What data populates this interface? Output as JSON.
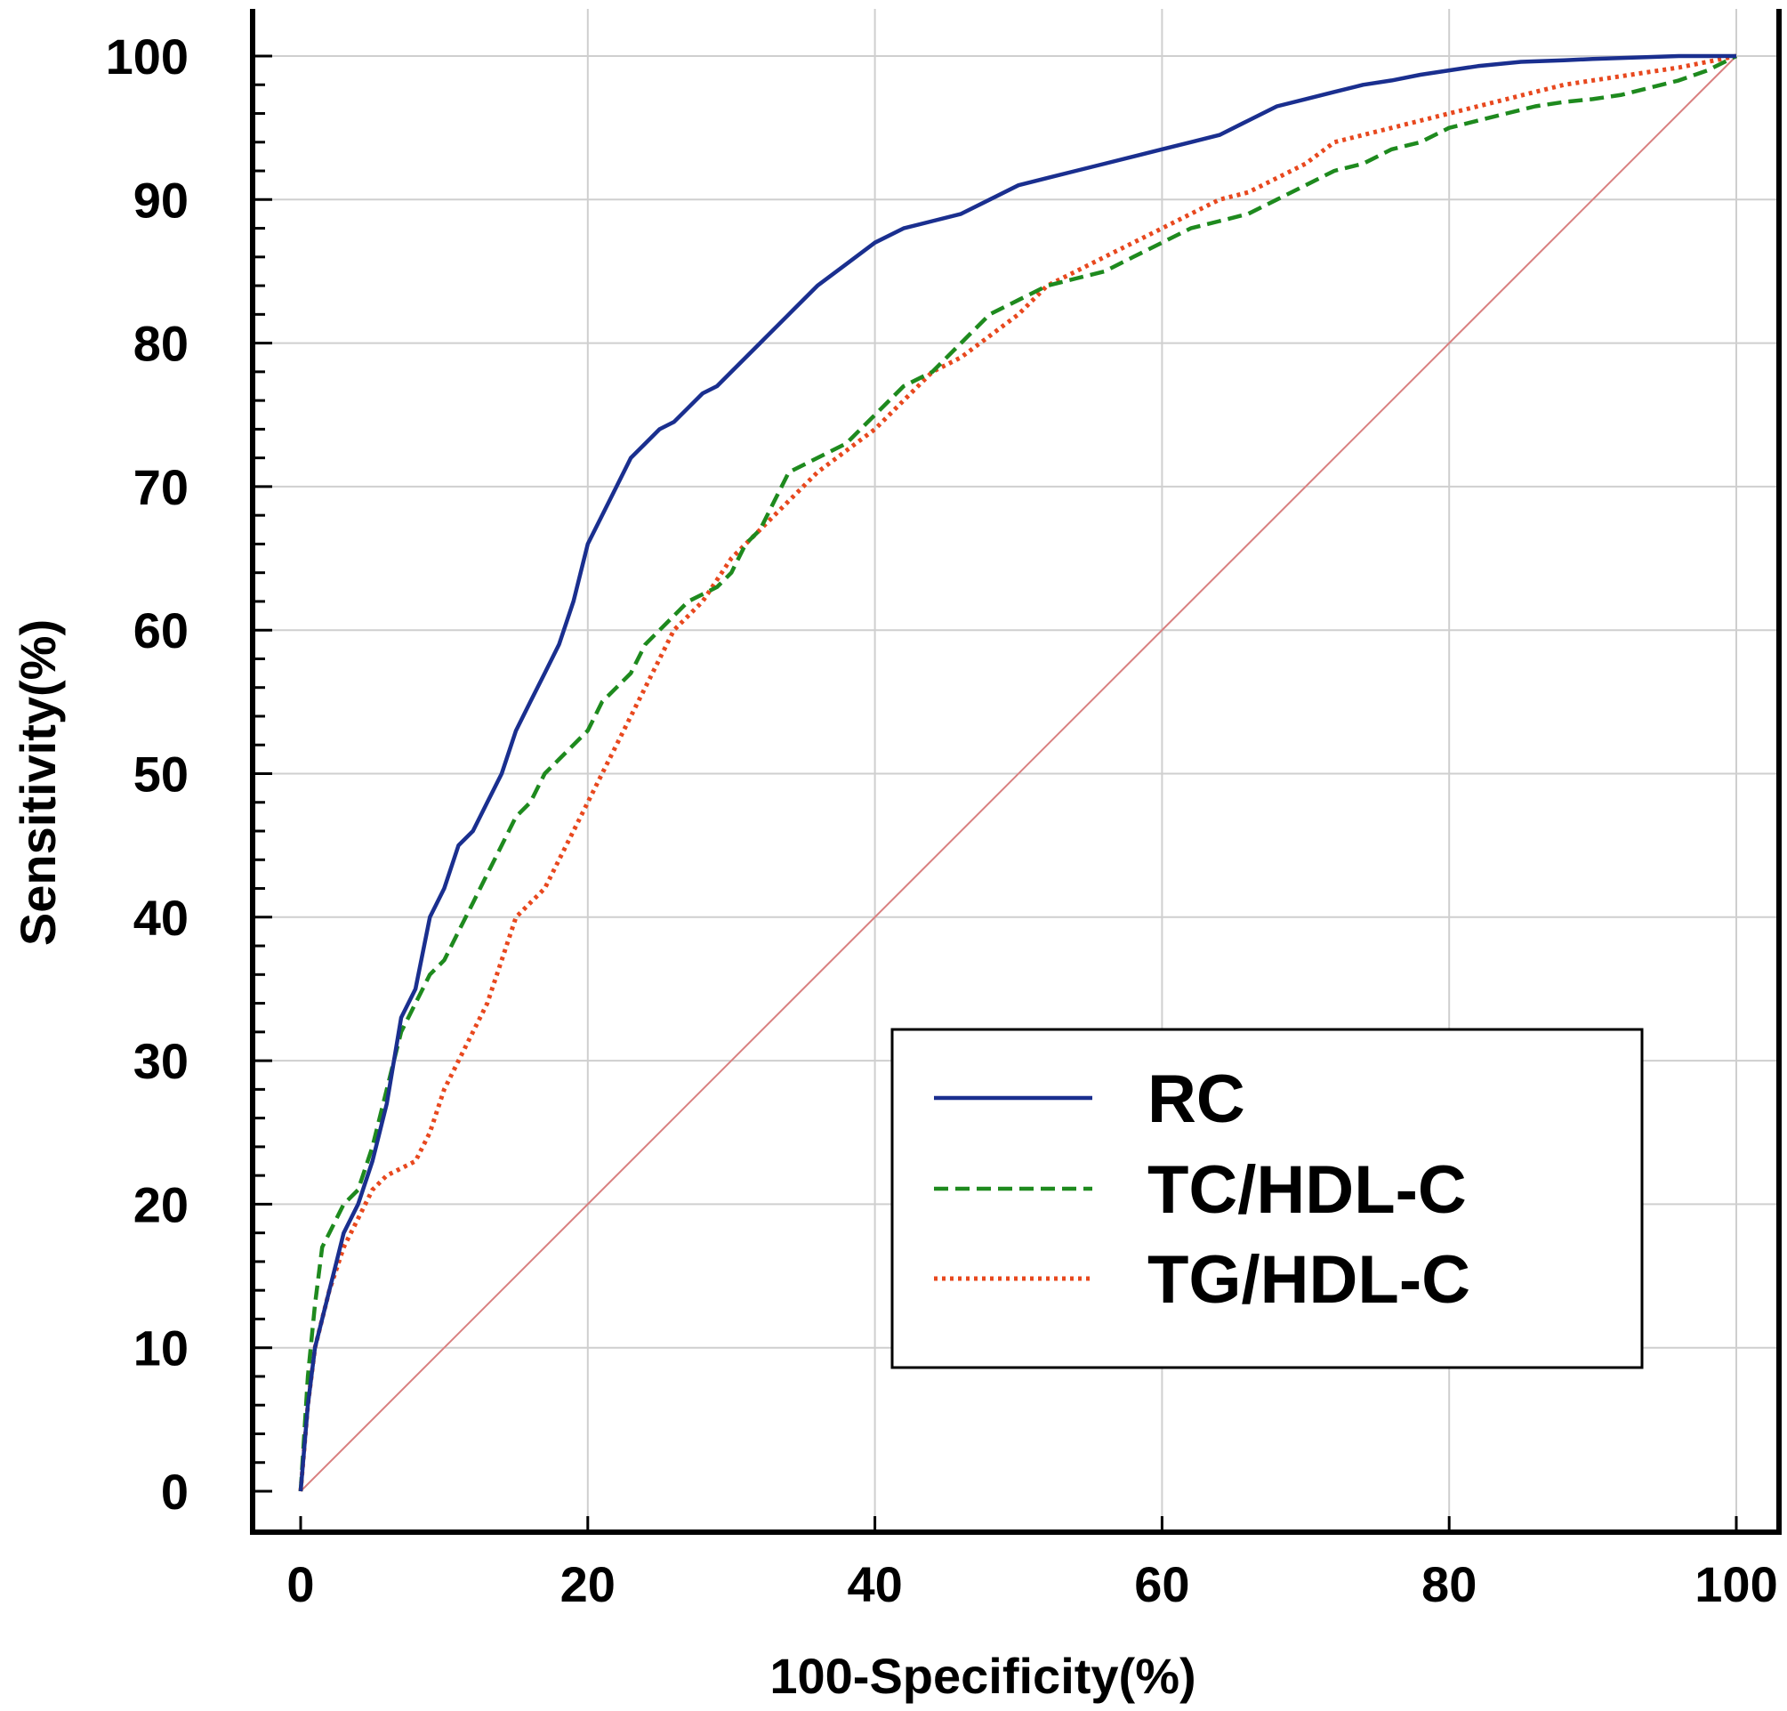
{
  "chart_data": {
    "type": "line",
    "title": "",
    "xlabel": "100-Specificity(%)",
    "ylabel": "Sensitivity(%)",
    "xlim": [
      0,
      100
    ],
    "ylim": [
      0,
      100
    ],
    "xticks": [
      "0",
      "20",
      "40",
      "60",
      "80",
      "100"
    ],
    "yticks": [
      "0",
      "10",
      "20",
      "30",
      "40",
      "50",
      "60",
      "70",
      "80",
      "90",
      "100"
    ],
    "grid": true,
    "legend_position": "bottom-right",
    "reference_line": {
      "x": [
        0,
        100
      ],
      "y": [
        0,
        100
      ],
      "color": "#d98080"
    },
    "series": [
      {
        "name": "RC",
        "color": "#1a2f8f",
        "style": "solid",
        "x": [
          0,
          0.5,
          1,
          1.5,
          2,
          2.5,
          3,
          4,
          5,
          6,
          7,
          8,
          9,
          10,
          11,
          12,
          13,
          14,
          15,
          16,
          17,
          18,
          19,
          20,
          21,
          22,
          23,
          24,
          25,
          26,
          27,
          28,
          29,
          30,
          32,
          34,
          36,
          38,
          40,
          42,
          44,
          46,
          48,
          50,
          52,
          54,
          56,
          58,
          60,
          62,
          64,
          66,
          68,
          70,
          72,
          74,
          76,
          78,
          80,
          82,
          85,
          88,
          90,
          93,
          96,
          100
        ],
        "y": [
          0,
          6,
          10,
          12,
          14,
          16,
          18,
          20,
          23,
          27,
          33,
          35,
          40,
          42,
          45,
          46,
          48,
          50,
          53,
          55,
          57,
          59,
          62,
          66,
          68,
          70,
          72,
          73,
          74,
          74.5,
          75.5,
          76.5,
          77,
          78,
          80,
          82,
          84,
          85.5,
          87,
          88,
          88.5,
          89,
          90,
          91,
          91.5,
          92,
          92.5,
          93,
          93.5,
          94,
          94.5,
          95.5,
          96.5,
          97,
          97.5,
          98,
          98.3,
          98.7,
          99,
          99.3,
          99.6,
          99.7,
          99.8,
          99.9,
          100,
          100
        ]
      },
      {
        "name": "TC/HDL-C",
        "color": "#1e8a1e",
        "style": "dashed",
        "x": [
          0,
          0.5,
          1,
          1.5,
          2,
          3,
          4,
          5,
          6,
          7,
          8,
          9,
          10,
          11,
          12,
          13,
          14,
          15,
          16,
          17,
          18,
          19,
          20,
          21,
          22,
          23,
          24,
          25,
          26,
          27,
          28,
          29,
          30,
          31,
          32,
          33,
          34,
          36,
          38,
          40,
          42,
          44,
          46,
          48,
          50,
          52,
          54,
          56,
          58,
          60,
          62,
          64,
          66,
          68,
          70,
          72,
          74,
          76,
          78,
          80,
          82,
          84,
          86,
          88,
          90,
          92,
          94,
          96,
          98,
          100
        ],
        "y": [
          0,
          8,
          13,
          17,
          18,
          20,
          21,
          24,
          28,
          32,
          34,
          36,
          37,
          39,
          41,
          43,
          45,
          47,
          48,
          50,
          51,
          52,
          53,
          55,
          56,
          57,
          59,
          60,
          61,
          62,
          62.5,
          63,
          64,
          66,
          67,
          69,
          71,
          72,
          73,
          75,
          77,
          78,
          80,
          82,
          83,
          84,
          84.5,
          85,
          86,
          87,
          88,
          88.5,
          89,
          90,
          91,
          92,
          92.5,
          93.5,
          94,
          95,
          95.5,
          96,
          96.5,
          96.8,
          97,
          97.3,
          97.8,
          98.3,
          99,
          100
        ]
      },
      {
        "name": "TG/HDL-C",
        "color": "#e8481e",
        "style": "dotted",
        "x": [
          0,
          0.5,
          1,
          1.5,
          2,
          3,
          4,
          5,
          6,
          7,
          8,
          9,
          10,
          11,
          12,
          13,
          14,
          15,
          16,
          17,
          18,
          19,
          20,
          21,
          22,
          23,
          24,
          25,
          26,
          27,
          28,
          29,
          30,
          31,
          32,
          33,
          34,
          36,
          38,
          40,
          42,
          44,
          46,
          48,
          50,
          52,
          54,
          56,
          58,
          60,
          62,
          64,
          66,
          68,
          70,
          72,
          74,
          76,
          78,
          80,
          82,
          84,
          86,
          88,
          90,
          92,
          94,
          96,
          98,
          100
        ],
        "y": [
          0,
          6,
          10,
          12,
          14,
          17,
          19,
          21,
          22,
          22.5,
          23,
          25,
          28,
          30,
          32,
          34,
          37,
          40,
          41,
          42,
          44,
          46,
          48,
          50,
          52,
          54,
          56,
          58,
          60,
          61,
          62,
          63.5,
          65,
          66,
          67,
          68,
          69,
          71,
          72.5,
          74,
          76,
          78,
          79,
          80.5,
          82,
          84,
          85,
          86,
          87,
          88,
          89,
          90,
          90.5,
          91.5,
          92.5,
          94,
          94.5,
          95,
          95.5,
          96,
          96.5,
          97,
          97.5,
          98,
          98.3,
          98.6,
          98.9,
          99.2,
          99.6,
          100
        ]
      }
    ]
  }
}
